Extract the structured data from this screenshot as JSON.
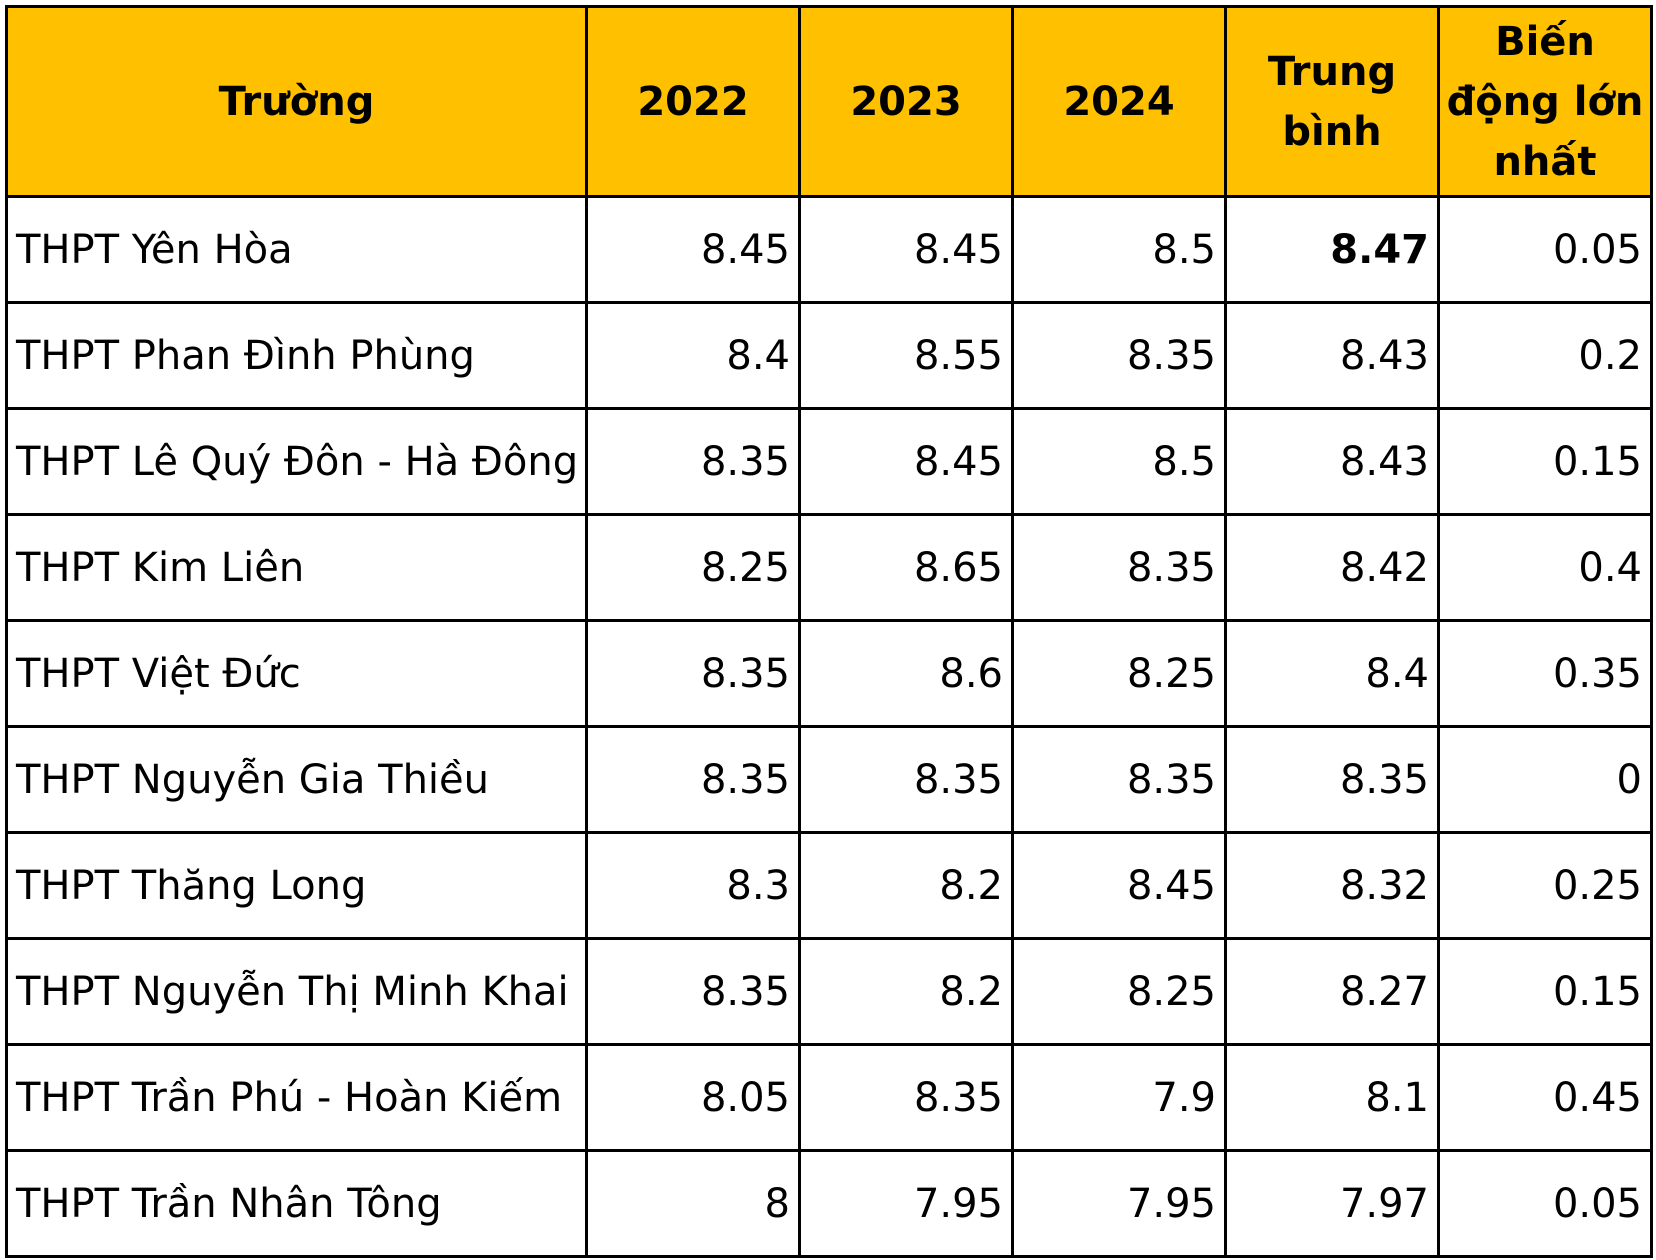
{
  "chart_data": {
    "type": "table",
    "columns": [
      "Trường",
      "2022",
      "2023",
      "2024",
      "Trung bình",
      "Biến động lớn nhất"
    ],
    "header_colors": {
      "background": "#ffc000",
      "text": "#000000"
    },
    "rows": [
      {
        "school": "THPT Yên Hòa",
        "y2022": "8.45",
        "y2023": "8.45",
        "y2024": "8.5",
        "average": "8.47",
        "max_change": "0.05",
        "average_bold": true
      },
      {
        "school": "THPT Phan Đình Phùng",
        "y2022": "8.4",
        "y2023": "8.55",
        "y2024": "8.35",
        "average": "8.43",
        "max_change": "0.2"
      },
      {
        "school": "THPT Lê Quý Đôn - Hà Đông",
        "y2022": "8.35",
        "y2023": "8.45",
        "y2024": "8.5",
        "average": "8.43",
        "max_change": "0.15"
      },
      {
        "school": "THPT Kim Liên",
        "y2022": "8.25",
        "y2023": "8.65",
        "y2024": "8.35",
        "average": "8.42",
        "max_change": "0.4"
      },
      {
        "school": "THPT Việt Đức",
        "y2022": "8.35",
        "y2023": "8.6",
        "y2024": "8.25",
        "average": "8.4",
        "max_change": "0.35"
      },
      {
        "school": "THPT Nguyễn Gia Thiều",
        "y2022": "8.35",
        "y2023": "8.35",
        "y2024": "8.35",
        "average": "8.35",
        "max_change": "0"
      },
      {
        "school": "THPT Thăng Long",
        "y2022": "8.3",
        "y2023": "8.2",
        "y2024": "8.45",
        "average": "8.32",
        "max_change": "0.25"
      },
      {
        "school": "THPT Nguyễn Thị Minh Khai",
        "y2022": "8.35",
        "y2023": "8.2",
        "y2024": "8.25",
        "average": "8.27",
        "max_change": "0.15"
      },
      {
        "school": "THPT Trần Phú - Hoàn Kiếm",
        "y2022": "8.05",
        "y2023": "8.35",
        "y2024": "7.9",
        "average": "8.1",
        "max_change": "0.45"
      },
      {
        "school": "THPT Trần Nhân Tông",
        "y2022": "8",
        "y2023": "7.95",
        "y2024": "7.95",
        "average": "7.97",
        "max_change": "0.05"
      }
    ]
  }
}
